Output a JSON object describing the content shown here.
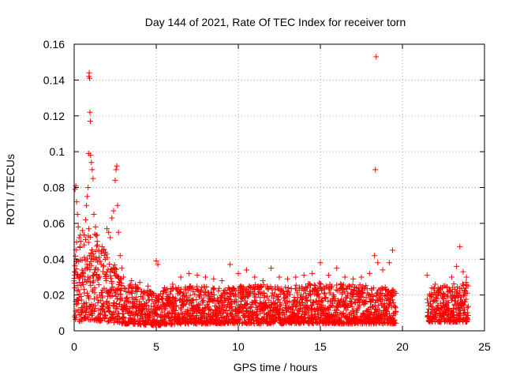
{
  "chart_data": {
    "type": "scatter",
    "title": "Day 144 of 2021, Rate Of TEC Index for receiver torn",
    "xlabel": "GPS time / hours",
    "ylabel": "ROTI / TECUs",
    "xlim": [
      0,
      25
    ],
    "ylim": [
      0,
      0.16
    ],
    "xticks": [
      0,
      5,
      10,
      15,
      20,
      25
    ],
    "xtick_labels": [
      "0",
      "5",
      "10",
      "15",
      "20",
      "25"
    ],
    "yticks": [
      0,
      0.02,
      0.04,
      0.06,
      0.08,
      0.1,
      0.12,
      0.14,
      0.16
    ],
    "ytick_labels": [
      "0",
      "0.02",
      "0.04",
      "0.06",
      "0.08",
      "0.1",
      "0.12",
      "0.14",
      "0.16"
    ],
    "grid": true,
    "marker": "plus",
    "marker_color": "#ff0000",
    "series": [
      {
        "points": [
          [
            0.05,
            0.079
          ],
          [
            0.1,
            0.081
          ],
          [
            0.15,
            0.072
          ],
          [
            0.2,
            0.065
          ],
          [
            0.25,
            0.058
          ],
          [
            0.3,
            0.052
          ],
          [
            0.35,
            0.047
          ],
          [
            0.4,
            0.05
          ],
          [
            0.5,
            0.056
          ],
          [
            0.6,
            0.048
          ],
          [
            0.7,
            0.062
          ],
          [
            0.75,
            0.07
          ],
          [
            0.8,
            0.075
          ],
          [
            0.85,
            0.08
          ],
          [
            0.88,
            0.099
          ],
          [
            0.9,
            0.142
          ],
          [
            0.92,
            0.144
          ],
          [
            0.94,
            0.141
          ],
          [
            0.96,
            0.122
          ],
          [
            0.98,
            0.117
          ],
          [
            1.0,
            0.098
          ],
          [
            1.05,
            0.094
          ],
          [
            1.1,
            0.09
          ],
          [
            1.15,
            0.085
          ],
          [
            1.2,
            0.065
          ],
          [
            1.3,
            0.058
          ],
          [
            1.4,
            0.05
          ],
          [
            1.5,
            0.045
          ],
          [
            1.7,
            0.047
          ],
          [
            2.0,
            0.057
          ],
          [
            2.1,
            0.055
          ],
          [
            2.2,
            0.052
          ],
          [
            2.3,
            0.063
          ],
          [
            2.4,
            0.067
          ],
          [
            2.5,
            0.084
          ],
          [
            2.55,
            0.09
          ],
          [
            2.6,
            0.092
          ],
          [
            2.65,
            0.07
          ],
          [
            2.7,
            0.055
          ],
          [
            2.8,
            0.042
          ],
          [
            2.9,
            0.035
          ],
          [
            3.0,
            0.03
          ],
          [
            3.5,
            0.028
          ],
          [
            4.0,
            0.027
          ],
          [
            4.5,
            0.025
          ],
          [
            5.0,
            0.039
          ],
          [
            5.1,
            0.037
          ],
          [
            5.5,
            0.024
          ],
          [
            6.0,
            0.026
          ],
          [
            6.5,
            0.03
          ],
          [
            7.0,
            0.032
          ],
          [
            7.5,
            0.031
          ],
          [
            8.0,
            0.03
          ],
          [
            8.5,
            0.029
          ],
          [
            9.0,
            0.028
          ],
          [
            9.5,
            0.037
          ],
          [
            10.0,
            0.032
          ],
          [
            10.5,
            0.034
          ],
          [
            11.0,
            0.03
          ],
          [
            11.5,
            0.028
          ],
          [
            12.0,
            0.035
          ],
          [
            12.5,
            0.03
          ],
          [
            13.0,
            0.029
          ],
          [
            13.5,
            0.03
          ],
          [
            14.0,
            0.031
          ],
          [
            14.5,
            0.032
          ],
          [
            15.0,
            0.038
          ],
          [
            15.5,
            0.031
          ],
          [
            16.0,
            0.035
          ],
          [
            16.5,
            0.03
          ],
          [
            17.0,
            0.029
          ],
          [
            17.5,
            0.03
          ],
          [
            18.0,
            0.032
          ],
          [
            18.3,
            0.042
          ],
          [
            18.35,
            0.09
          ],
          [
            18.4,
            0.153
          ],
          [
            18.5,
            0.038
          ],
          [
            18.8,
            0.034
          ],
          [
            19.2,
            0.038
          ],
          [
            19.4,
            0.045
          ],
          [
            21.5,
            0.031
          ],
          [
            22.0,
            0.026
          ],
          [
            22.5,
            0.025
          ],
          [
            23.0,
            0.03
          ],
          [
            23.3,
            0.036
          ],
          [
            23.5,
            0.047
          ],
          [
            23.7,
            0.033
          ],
          [
            23.9,
            0.03
          ]
        ],
        "band": [
          [
            0.0,
            0.005,
            0.05
          ],
          [
            1.0,
            0.006,
            0.06
          ],
          [
            2.0,
            0.005,
            0.045
          ],
          [
            3.0,
            0.004,
            0.028
          ],
          [
            5.0,
            0.003,
            0.022
          ],
          [
            7.0,
            0.004,
            0.026
          ],
          [
            9.0,
            0.004,
            0.024
          ],
          [
            11.0,
            0.004,
            0.026
          ],
          [
            13.0,
            0.004,
            0.025
          ],
          [
            15.0,
            0.004,
            0.027
          ],
          [
            17.0,
            0.004,
            0.026
          ],
          [
            19.5,
            0.004,
            0.024
          ],
          [
            21.6,
            0.005,
            0.024
          ],
          [
            24.0,
            0.005,
            0.028
          ]
        ],
        "gaps": [
          [
            19.6,
            21.5
          ]
        ]
      }
    ]
  }
}
